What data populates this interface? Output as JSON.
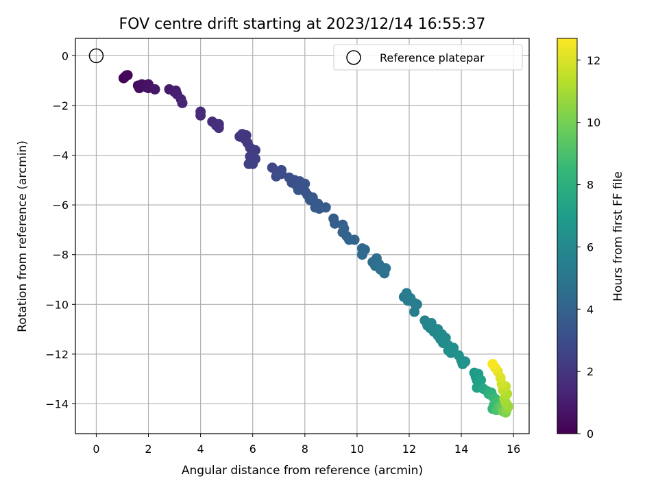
{
  "chart_data": {
    "type": "scatter",
    "title": "FOV centre drift starting at 2023/12/14 16:55:37",
    "xlabel": "Angular distance from reference (arcmin)",
    "ylabel": "Rotation from reference (arcmin)",
    "xlim": [
      -0.8,
      16.6
    ],
    "ylim": [
      -15.2,
      0.7
    ],
    "xticks": [
      0,
      2,
      4,
      6,
      8,
      10,
      12,
      14,
      16
    ],
    "yticks": [
      0,
      -2,
      -4,
      -6,
      -8,
      -10,
      -12,
      -14
    ],
    "grid": true,
    "legend": {
      "position": "top-right",
      "entries": [
        {
          "label": "Reference platepar",
          "marker": "open-circle"
        }
      ]
    },
    "reference_point": {
      "x": 0,
      "y": 0
    },
    "colorbar": {
      "label": "Hours from first FF file",
      "min": 0,
      "max": 12.7,
      "ticks": [
        0,
        2,
        4,
        6,
        8,
        10,
        12
      ],
      "colormap": "viridis"
    },
    "points_note": "x = angular distance (arcmin), y = rotation (arcmin), c = hours from first FF file",
    "points": [
      {
        "x": 1.05,
        "y": -0.9,
        "c": 0.05
      },
      {
        "x": 1.1,
        "y": -0.85,
        "c": 0.1
      },
      {
        "x": 1.15,
        "y": -0.8,
        "c": 0.15
      },
      {
        "x": 1.2,
        "y": -0.78,
        "c": 0.2
      },
      {
        "x": 1.6,
        "y": -1.2,
        "c": 0.4
      },
      {
        "x": 1.65,
        "y": -1.3,
        "c": 0.45
      },
      {
        "x": 1.75,
        "y": -1.15,
        "c": 0.5
      },
      {
        "x": 1.9,
        "y": -1.25,
        "c": 0.55
      },
      {
        "x": 2.0,
        "y": -1.15,
        "c": 0.6
      },
      {
        "x": 2.0,
        "y": -1.3,
        "c": 0.65
      },
      {
        "x": 2.25,
        "y": -1.35,
        "c": 0.75
      },
      {
        "x": 2.8,
        "y": -1.35,
        "c": 0.9
      },
      {
        "x": 3.0,
        "y": -1.45,
        "c": 1.0
      },
      {
        "x": 3.05,
        "y": -1.4,
        "c": 1.05
      },
      {
        "x": 3.1,
        "y": -1.55,
        "c": 1.1
      },
      {
        "x": 3.25,
        "y": -1.75,
        "c": 1.2
      },
      {
        "x": 3.3,
        "y": -1.9,
        "c": 1.25
      },
      {
        "x": 4.0,
        "y": -2.25,
        "c": 1.45
      },
      {
        "x": 4.0,
        "y": -2.4,
        "c": 1.5
      },
      {
        "x": 4.45,
        "y": -2.65,
        "c": 1.6
      },
      {
        "x": 4.6,
        "y": -2.8,
        "c": 1.65
      },
      {
        "x": 4.7,
        "y": -2.75,
        "c": 1.7
      },
      {
        "x": 4.7,
        "y": -2.9,
        "c": 1.75
      },
      {
        "x": 5.5,
        "y": -3.25,
        "c": 1.95
      },
      {
        "x": 5.6,
        "y": -3.15,
        "c": 2.0
      },
      {
        "x": 5.7,
        "y": -3.35,
        "c": 2.05
      },
      {
        "x": 5.75,
        "y": -3.2,
        "c": 2.1
      },
      {
        "x": 5.8,
        "y": -3.5,
        "c": 2.15
      },
      {
        "x": 5.9,
        "y": -3.7,
        "c": 2.2
      },
      {
        "x": 6.0,
        "y": -3.95,
        "c": 2.25
      },
      {
        "x": 6.1,
        "y": -3.8,
        "c": 2.3
      },
      {
        "x": 5.9,
        "y": -4.05,
        "c": 2.35
      },
      {
        "x": 6.1,
        "y": -4.15,
        "c": 2.4
      },
      {
        "x": 5.85,
        "y": -4.35,
        "c": 2.45
      },
      {
        "x": 6.0,
        "y": -4.35,
        "c": 2.5
      },
      {
        "x": 6.75,
        "y": -4.5,
        "c": 2.75
      },
      {
        "x": 7.0,
        "y": -4.65,
        "c": 2.85
      },
      {
        "x": 7.1,
        "y": -4.6,
        "c": 2.9
      },
      {
        "x": 6.9,
        "y": -4.85,
        "c": 2.95
      },
      {
        "x": 7.1,
        "y": -4.75,
        "c": 3.0
      },
      {
        "x": 7.4,
        "y": -4.9,
        "c": 3.05
      },
      {
        "x": 7.5,
        "y": -5.1,
        "c": 3.1
      },
      {
        "x": 7.6,
        "y": -5.0,
        "c": 3.15
      },
      {
        "x": 7.7,
        "y": -5.25,
        "c": 3.2
      },
      {
        "x": 7.8,
        "y": -5.05,
        "c": 3.22
      },
      {
        "x": 7.9,
        "y": -5.3,
        "c": 3.25
      },
      {
        "x": 8.0,
        "y": -5.15,
        "c": 3.28
      },
      {
        "x": 8.0,
        "y": -5.45,
        "c": 3.3
      },
      {
        "x": 7.75,
        "y": -5.4,
        "c": 3.32
      },
      {
        "x": 8.1,
        "y": -5.6,
        "c": 3.35
      },
      {
        "x": 8.2,
        "y": -5.8,
        "c": 3.4
      },
      {
        "x": 8.3,
        "y": -5.7,
        "c": 3.45
      },
      {
        "x": 8.4,
        "y": -6.1,
        "c": 3.5
      },
      {
        "x": 8.5,
        "y": -5.95,
        "c": 3.55
      },
      {
        "x": 8.55,
        "y": -6.15,
        "c": 3.58
      },
      {
        "x": 8.8,
        "y": -6.1,
        "c": 3.62
      },
      {
        "x": 9.1,
        "y": -6.55,
        "c": 3.75
      },
      {
        "x": 9.15,
        "y": -6.75,
        "c": 3.8
      },
      {
        "x": 9.45,
        "y": -6.8,
        "c": 3.85
      },
      {
        "x": 9.5,
        "y": -6.95,
        "c": 3.9
      },
      {
        "x": 9.45,
        "y": -7.1,
        "c": 3.95
      },
      {
        "x": 9.6,
        "y": -7.25,
        "c": 4.0
      },
      {
        "x": 9.7,
        "y": -7.4,
        "c": 4.05
      },
      {
        "x": 9.9,
        "y": -7.4,
        "c": 4.1
      },
      {
        "x": 10.2,
        "y": -7.75,
        "c": 4.25
      },
      {
        "x": 10.3,
        "y": -7.8,
        "c": 4.3
      },
      {
        "x": 10.2,
        "y": -8.0,
        "c": 4.35
      },
      {
        "x": 10.6,
        "y": -8.3,
        "c": 4.5
      },
      {
        "x": 10.75,
        "y": -8.15,
        "c": 4.55
      },
      {
        "x": 10.7,
        "y": -8.45,
        "c": 4.6
      },
      {
        "x": 10.85,
        "y": -8.4,
        "c": 4.65
      },
      {
        "x": 10.9,
        "y": -8.6,
        "c": 4.7
      },
      {
        "x": 11.05,
        "y": -8.75,
        "c": 4.75
      },
      {
        "x": 11.1,
        "y": -8.55,
        "c": 4.8
      },
      {
        "x": 11.8,
        "y": -9.7,
        "c": 5.2
      },
      {
        "x": 11.9,
        "y": -9.55,
        "c": 5.25
      },
      {
        "x": 11.95,
        "y": -9.85,
        "c": 5.3
      },
      {
        "x": 12.05,
        "y": -9.75,
        "c": 5.35
      },
      {
        "x": 12.2,
        "y": -9.95,
        "c": 5.4
      },
      {
        "x": 12.3,
        "y": -10.0,
        "c": 5.45
      },
      {
        "x": 12.2,
        "y": -10.3,
        "c": 5.5
      },
      {
        "x": 12.6,
        "y": -10.65,
        "c": 5.7
      },
      {
        "x": 12.7,
        "y": -10.85,
        "c": 5.75
      },
      {
        "x": 12.8,
        "y": -10.95,
        "c": 5.8
      },
      {
        "x": 12.85,
        "y": -10.75,
        "c": 5.85
      },
      {
        "x": 12.95,
        "y": -11.1,
        "c": 5.9
      },
      {
        "x": 13.1,
        "y": -11.0,
        "c": 5.95
      },
      {
        "x": 13.1,
        "y": -11.25,
        "c": 6.0
      },
      {
        "x": 13.2,
        "y": -11.4,
        "c": 6.05
      },
      {
        "x": 13.25,
        "y": -11.2,
        "c": 6.08
      },
      {
        "x": 13.3,
        "y": -11.55,
        "c": 6.1
      },
      {
        "x": 13.4,
        "y": -11.35,
        "c": 6.12
      },
      {
        "x": 13.5,
        "y": -11.65,
        "c": 6.15
      },
      {
        "x": 13.5,
        "y": -11.85,
        "c": 6.2
      },
      {
        "x": 13.6,
        "y": -11.95,
        "c": 6.25
      },
      {
        "x": 13.7,
        "y": -11.75,
        "c": 6.3
      },
      {
        "x": 13.9,
        "y": -12.05,
        "c": 6.4
      },
      {
        "x": 14.0,
        "y": -12.25,
        "c": 6.45
      },
      {
        "x": 14.05,
        "y": -12.4,
        "c": 6.5
      },
      {
        "x": 14.15,
        "y": -12.3,
        "c": 6.55
      },
      {
        "x": 14.5,
        "y": -12.75,
        "c": 6.8
      },
      {
        "x": 14.55,
        "y": -12.9,
        "c": 6.85
      },
      {
        "x": 14.6,
        "y": -13.05,
        "c": 6.9
      },
      {
        "x": 14.65,
        "y": -12.8,
        "c": 6.95
      },
      {
        "x": 14.7,
        "y": -13.2,
        "c": 7.1
      },
      {
        "x": 14.75,
        "y": -13.05,
        "c": 7.2
      },
      {
        "x": 14.6,
        "y": -13.35,
        "c": 7.3
      },
      {
        "x": 14.85,
        "y": -13.4,
        "c": 7.5
      },
      {
        "x": 15.0,
        "y": -13.5,
        "c": 7.7
      },
      {
        "x": 15.05,
        "y": -13.6,
        "c": 7.9
      },
      {
        "x": 15.15,
        "y": -13.55,
        "c": 8.1
      },
      {
        "x": 15.2,
        "y": -13.7,
        "c": 8.3
      },
      {
        "x": 15.3,
        "y": -13.8,
        "c": 8.6
      },
      {
        "x": 15.4,
        "y": -13.9,
        "c": 8.8
      },
      {
        "x": 15.25,
        "y": -14.05,
        "c": 8.7
      },
      {
        "x": 15.2,
        "y": -14.2,
        "c": 8.5
      },
      {
        "x": 15.35,
        "y": -14.25,
        "c": 9.0
      },
      {
        "x": 15.45,
        "y": -14.1,
        "c": 9.2
      },
      {
        "x": 15.55,
        "y": -14.15,
        "c": 9.6
      },
      {
        "x": 15.6,
        "y": -14.3,
        "c": 9.9
      },
      {
        "x": 15.7,
        "y": -14.35,
        "c": 10.2
      },
      {
        "x": 15.75,
        "y": -14.2,
        "c": 10.5
      },
      {
        "x": 15.8,
        "y": -14.1,
        "c": 10.8
      },
      {
        "x": 15.7,
        "y": -13.95,
        "c": 10.9
      },
      {
        "x": 15.65,
        "y": -13.8,
        "c": 11.0
      },
      {
        "x": 15.75,
        "y": -13.6,
        "c": 11.2
      },
      {
        "x": 15.6,
        "y": -13.45,
        "c": 11.4
      },
      {
        "x": 15.7,
        "y": -13.3,
        "c": 11.6
      },
      {
        "x": 15.55,
        "y": -13.2,
        "c": 11.8
      },
      {
        "x": 15.5,
        "y": -12.95,
        "c": 12.0
      },
      {
        "x": 15.4,
        "y": -12.7,
        "c": 12.2
      },
      {
        "x": 15.3,
        "y": -12.55,
        "c": 12.4
      },
      {
        "x": 15.2,
        "y": -12.4,
        "c": 12.6
      }
    ]
  }
}
